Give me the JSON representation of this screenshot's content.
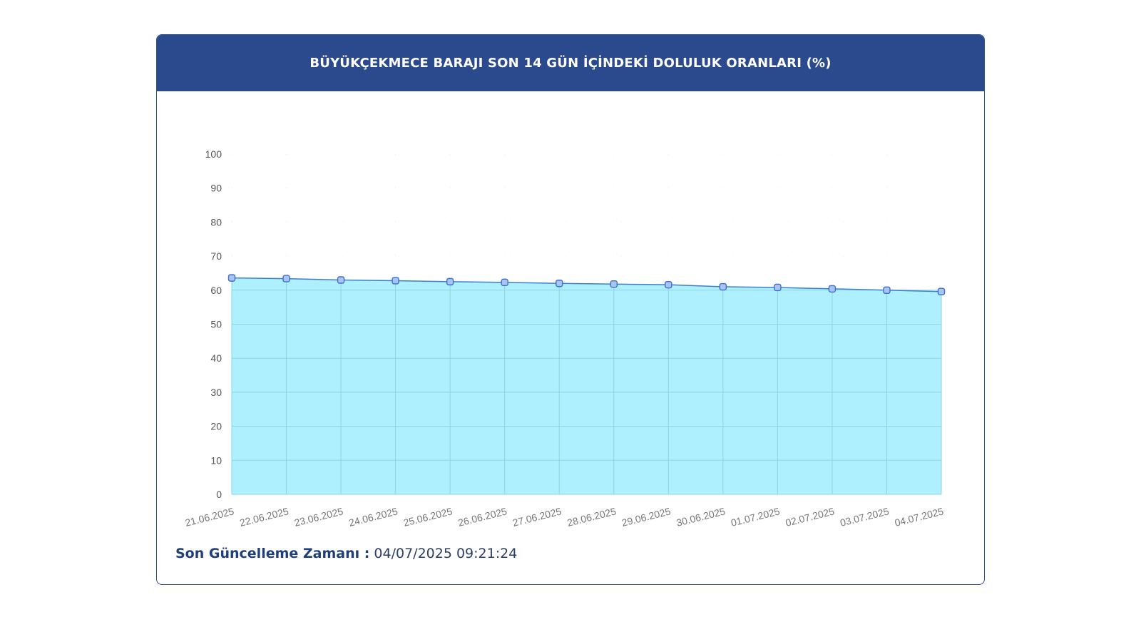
{
  "title": "BÜYÜKÇEKMECE BARAJI SON 14 GÜN İÇİNDEKİ DOLULUK ORANLARI (%)",
  "footer": {
    "label": "Son Güncelleme Zamanı :",
    "value": "04/07/2025 09:21:24"
  },
  "colors": {
    "header": "#2b4a8e",
    "area_fill": "#aef0fd",
    "line": "#3b7fd0",
    "marker": "#3b6fd0"
  },
  "chart_data": {
    "type": "area",
    "title": "BÜYÜKÇEKMECE BARAJI SON 14 GÜN İÇİNDEKİ DOLULUK ORANLARI (%)",
    "xlabel": "",
    "ylabel": "",
    "ylim": [
      0,
      100
    ],
    "yticks": [
      0,
      10,
      20,
      30,
      40,
      50,
      60,
      70,
      80,
      90,
      100
    ],
    "grid": true,
    "categories": [
      "21.06.2025",
      "22.06.2025",
      "23.06.2025",
      "24.06.2025",
      "25.06.2025",
      "26.06.2025",
      "27.06.2025",
      "28.06.2025",
      "29.06.2025",
      "30.06.2025",
      "01.07.2025",
      "02.07.2025",
      "03.07.2025",
      "04.07.2025"
    ],
    "series": [
      {
        "values": [
          63.6,
          63.4,
          63.0,
          62.8,
          62.5,
          62.3,
          62.0,
          61.8,
          61.6,
          61.0,
          60.8,
          60.4,
          60.0,
          59.6
        ]
      }
    ]
  }
}
